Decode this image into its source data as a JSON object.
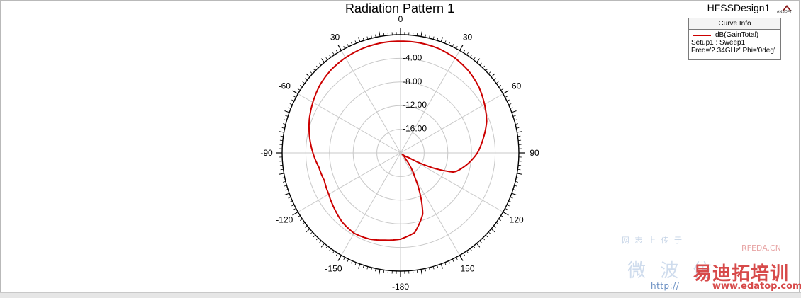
{
  "window": {
    "design_name": "HFSSDesign1",
    "logo_text": "ANSOFT"
  },
  "legend": {
    "header": "Curve Info",
    "curve_label": "dB(GainTotal)",
    "setup_line": "Setup1 : Sweep1",
    "freq_line": "Freq='2.34GHz' Phi='0deg'"
  },
  "watermark": {
    "top_line": "网 志 上 传 于",
    "site_tag": "RFEDA.CN",
    "cn_text": "微 波 仿",
    "red_text": "易迪拓培训",
    "url": "http://",
    "url_domain": "www.edatop.com"
  },
  "colors": {
    "curve": "#cc0000",
    "grid": "#c8c8c8",
    "axis": "#000000"
  },
  "chart_data": {
    "type": "line",
    "subtype": "polar",
    "title": "Radiation Pattern 1",
    "angle_unit": "deg",
    "angle_zero": "top",
    "angle_direction": "clockwise",
    "angle_tick_labels": [
      "0",
      "30",
      "60",
      "90",
      "120",
      "150",
      "-180",
      "-150",
      "-120",
      "-90",
      "-60",
      "-30"
    ],
    "angle_tick_values": [
      0,
      30,
      60,
      90,
      120,
      150,
      180,
      -150,
      -120,
      -90,
      -60,
      -30
    ],
    "radial_range": [
      -20,
      0
    ],
    "radial_tick_values": [
      -4,
      -8,
      -12,
      -16
    ],
    "radial_tick_labels": [
      "-4.00",
      "-8.00",
      "-12.00",
      "-16.00"
    ],
    "grid": true,
    "legend_position": "top-right",
    "series": [
      {
        "name": "dB(GainTotal)",
        "theta": [
          0,
          10,
          20,
          30,
          40,
          50,
          60,
          70,
          80,
          90,
          100,
          108,
          110,
          115,
          120,
          130,
          140,
          150,
          155,
          160,
          170,
          180,
          -170,
          -160,
          -150,
          -140,
          -130,
          -120,
          -110,
          -100,
          -90,
          -80,
          -70,
          -60,
          -50,
          -40,
          -30,
          -20,
          -10,
          0
        ],
        "values": [
          -1.1,
          -1.1,
          -1.2,
          -1.5,
          -2.0,
          -2.7,
          -3.6,
          -4.5,
          -5.8,
          -7.0,
          -8.6,
          -10.0,
          -10.5,
          -14.0,
          -18.5,
          -19.6,
          -18.6,
          -15.0,
          -12.0,
          -9.0,
          -6.3,
          -5.4,
          -5.0,
          -4.5,
          -4.3,
          -4.7,
          -5.4,
          -6.0,
          -6.3,
          -6.0,
          -5.2,
          -4.4,
          -3.6,
          -2.9,
          -2.2,
          -1.7,
          -1.4,
          -1.2,
          -1.1,
          -1.1
        ]
      }
    ]
  }
}
